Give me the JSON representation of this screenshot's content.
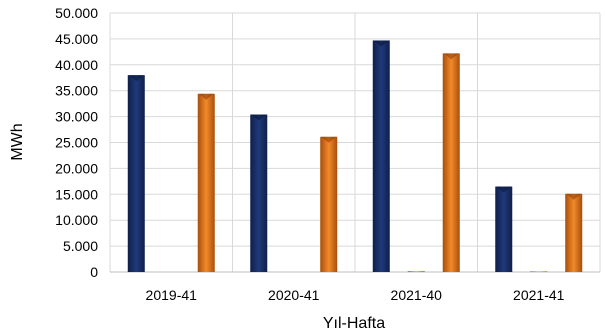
{
  "chart_data": {
    "type": "bar",
    "title": "",
    "xlabel": "Yıl-Hafta",
    "ylabel": "MWh",
    "categories": [
      "2019-41",
      "2020-41",
      "2021-40",
      "2021-41"
    ],
    "ylim": [
      0,
      50000
    ],
    "yticks": [
      0,
      5000,
      10000,
      15000,
      20000,
      25000,
      30000,
      35000,
      40000,
      45000,
      50000
    ],
    "ytick_labels": [
      "0",
      "5.000",
      "10.000",
      "15.000",
      "20.000",
      "25.000",
      "30.000",
      "35.000",
      "40.000",
      "45.000",
      "50.000"
    ],
    "grid": true,
    "legend": "none",
    "series": [
      {
        "values": [
          38000,
          30400,
          44700,
          16500
        ],
        "color": "#1f3a7a"
      },
      {
        "values": [
          0,
          0,
          200,
          150
        ],
        "color": "#a8c84a"
      },
      {
        "values": [
          34400,
          26100,
          42200,
          15100
        ],
        "color": "#e07a1f"
      }
    ]
  }
}
